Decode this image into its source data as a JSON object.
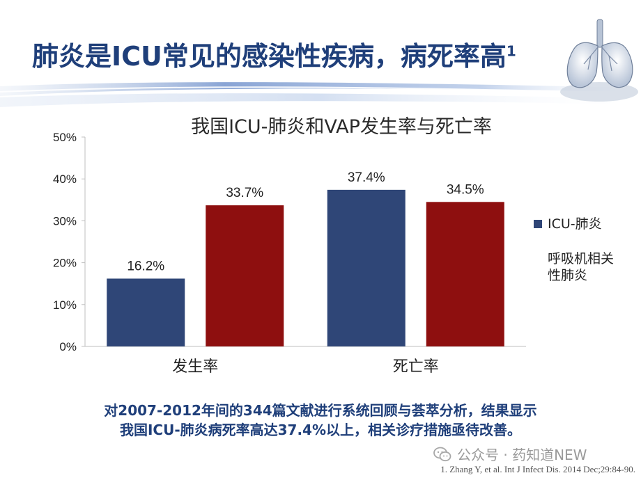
{
  "title": "肺炎是ICU常见的感染性疾病，病死率高",
  "title_superscript": "1",
  "chart_data": {
    "type": "bar",
    "title": "我国ICU-肺炎和VAP发生率与死亡率",
    "categories": [
      "发生率",
      "死亡率"
    ],
    "series": [
      {
        "name": "ICU-肺炎",
        "values": [
          16.2,
          37.4
        ],
        "labels": [
          "16.2%",
          "37.4%"
        ],
        "color": "#2f4677"
      },
      {
        "name": "呼吸机相关性肺炎",
        "legend_lines": [
          "呼吸机相关",
          "性肺炎"
        ],
        "values": [
          33.7,
          34.5
        ],
        "labels": [
          "33.7%",
          "34.5%"
        ],
        "color": "#8e0f0f"
      }
    ],
    "y_ticks": [
      "0%",
      "10%",
      "20%",
      "30%",
      "40%",
      "50%"
    ],
    "ylim": [
      0,
      50
    ],
    "grid": false,
    "legend_position": "right"
  },
  "summary": {
    "line1": "对2007-2012年间的344篇文献进行系统回顾与荟萃分析，结果显示",
    "line2": "我国ICU-肺炎病死率高达37.4%以上，相关诊疗措施亟待改善。"
  },
  "watermark": "公众号 · 药知道NEW",
  "citation": "1. Zhang Y, et al. Int J Infect Dis. 2014 Dec;29:84-90.",
  "colors": {
    "title": "#1f3f7a",
    "accent_blue": "#2f4677",
    "accent_red": "#8e0f0f"
  },
  "icons": [
    "lungs-image",
    "wechat-icon"
  ]
}
